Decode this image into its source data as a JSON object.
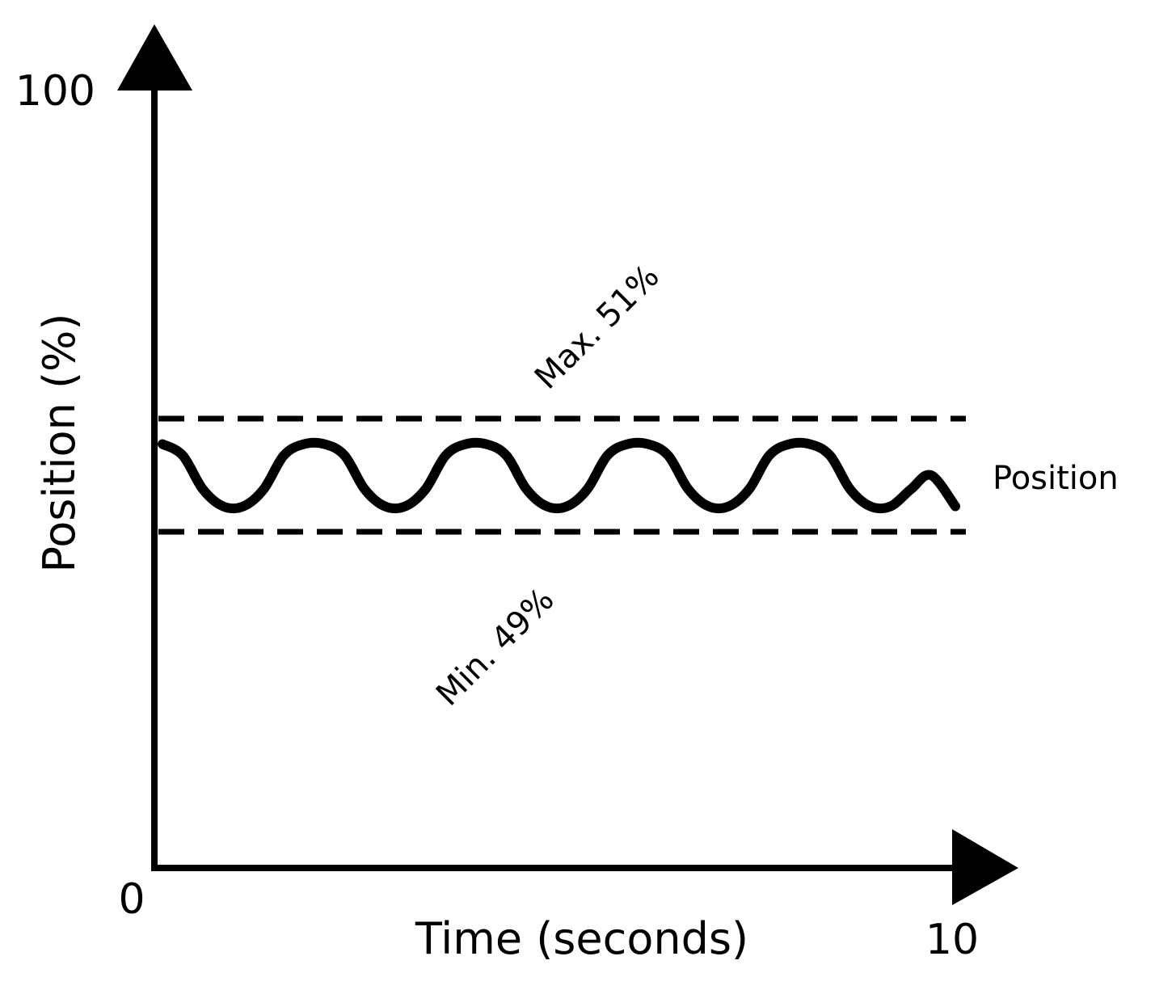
{
  "chart_data": {
    "type": "line",
    "xlabel": "Time (seconds)",
    "ylabel": "Position (%)",
    "xlim": [
      0,
      10
    ],
    "ylim": [
      0,
      100
    ],
    "x_tick_labels": {
      "min": "0",
      "max": "10"
    },
    "y_tick_labels": {
      "max": "100"
    },
    "grid": false,
    "series": [
      {
        "name": "Position",
        "x": [
          0.1,
          0.35,
          0.6,
          0.85,
          1.1,
          1.35,
          1.6,
          1.85,
          2.1,
          2.35,
          2.6,
          2.85,
          3.1,
          3.35,
          3.6,
          3.85,
          4.1,
          4.35,
          4.6,
          4.85,
          5.1,
          5.35,
          5.6,
          5.85,
          6.1,
          6.35,
          6.6,
          6.85,
          7.1,
          7.35,
          7.6,
          7.85,
          8.1,
          8.35,
          8.6,
          8.85,
          9.1,
          9.35,
          9.6,
          9.9
        ],
        "y": [
          50.55,
          50.35,
          49.75,
          49.45,
          49.45,
          49.75,
          50.35,
          50.55,
          50.55,
          50.35,
          49.75,
          49.45,
          49.45,
          49.75,
          50.35,
          50.55,
          50.55,
          50.35,
          49.75,
          49.45,
          49.45,
          49.75,
          50.35,
          50.55,
          50.55,
          50.35,
          49.75,
          49.45,
          49.45,
          49.75,
          50.35,
          50.55,
          50.55,
          50.35,
          49.75,
          49.45,
          49.45,
          49.75,
          50.0,
          49.45
        ],
        "color": "#000000",
        "style": "solid"
      }
    ],
    "reference_lines": [
      {
        "y": 51,
        "label": "Max. 51%",
        "style": "dashed",
        "color": "#000000"
      },
      {
        "y": 49,
        "label": "Min. 49%",
        "style": "dashed",
        "color": "#000000"
      }
    ]
  }
}
